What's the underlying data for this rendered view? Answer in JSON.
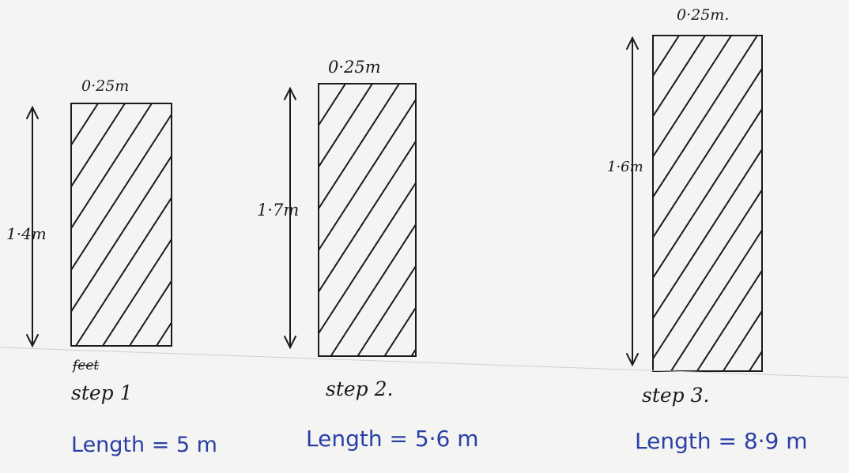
{
  "steps": [
    {
      "id": "step1",
      "width_label": "0·25m",
      "height_label": "1·4m",
      "struck_label": "feet",
      "step_label": "step 1",
      "length_label": "Length = 5 m"
    },
    {
      "id": "step2",
      "width_label": "0·25m",
      "height_label": "1·7m",
      "step_label": "step 2.",
      "length_label": "Length = 5·6 m"
    },
    {
      "id": "step3",
      "width_label": "0·25m.",
      "height_label": "1·6m",
      "step_label": "step 3.",
      "length_label": "Length = 8·9 m"
    }
  ],
  "colors": {
    "ink": "#1b1b1b",
    "blue_ink": "#2a3fa6",
    "paper": "#f4f4f2"
  }
}
